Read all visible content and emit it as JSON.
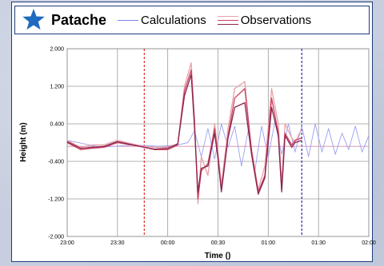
{
  "station": {
    "name": "Patache",
    "icon": "star-icon",
    "icon_color": "#1f6bbf"
  },
  "legend": [
    {
      "label": "Calculations",
      "color": "#7c80e6"
    },
    {
      "label": "Observations",
      "colors": [
        "#e8a0a8",
        "#cc4060",
        "#8a2550"
      ]
    }
  ],
  "chart_data": {
    "type": "line",
    "title": "",
    "xlabel": "Time ()",
    "ylabel": "Height (m)",
    "x_ticks": [
      "23:00",
      "23:30",
      "00:00",
      "00:30",
      "01:00",
      "01:30",
      "02:00"
    ],
    "y_ticks": [
      "2.000",
      "1.200",
      "0.400",
      "-0.400",
      "-1.200",
      "-2.000"
    ],
    "xlim_minutes": [
      0,
      180
    ],
    "ylim": [
      -2.0,
      2.0
    ],
    "grid": true,
    "vlines": [
      {
        "x_minutes": 46,
        "color": "#e03030"
      },
      {
        "x_minutes": 140,
        "color": "#2a2aa0"
      }
    ],
    "series": [
      {
        "color": "#9aa0f0",
        "points": [
          [
            0,
            0.05
          ],
          [
            20,
            -0.1
          ],
          [
            40,
            -0.05
          ],
          [
            55,
            -0.08
          ],
          [
            66,
            -0.05
          ],
          [
            72,
            0.0
          ],
          [
            76,
            0.25
          ],
          [
            80,
            -0.3
          ],
          [
            84,
            0.3
          ],
          [
            88,
            -0.35
          ],
          [
            92,
            0.4
          ],
          [
            96,
            -0.1
          ],
          [
            100,
            0.35
          ],
          [
            104,
            -0.5
          ],
          [
            108,
            0.25
          ],
          [
            112,
            -0.6
          ],
          [
            116,
            0.35
          ],
          [
            120,
            -0.3
          ],
          [
            124,
            0.45
          ],
          [
            128,
            -0.25
          ],
          [
            132,
            0.4
          ],
          [
            136,
            -0.2
          ],
          [
            140,
            0.35
          ],
          [
            144,
            -0.3
          ],
          [
            148,
            0.4
          ],
          [
            152,
            -0.2
          ],
          [
            156,
            0.3
          ],
          [
            160,
            -0.25
          ],
          [
            164,
            0.2
          ],
          [
            168,
            -0.15
          ],
          [
            172,
            0.35
          ],
          [
            176,
            -0.2
          ],
          [
            180,
            0.15
          ]
        ]
      },
      {
        "color": "#e8a0a8",
        "points": [
          [
            0,
            0.05
          ],
          [
            8,
            -0.1
          ],
          [
            15,
            -0.05
          ],
          [
            22,
            -0.05
          ],
          [
            30,
            0.05
          ],
          [
            38,
            -0.02
          ],
          [
            46,
            -0.08
          ],
          [
            52,
            -0.1
          ],
          [
            60,
            -0.1
          ],
          [
            66,
            -0.02
          ],
          [
            70,
            1.2
          ],
          [
            74,
            1.7
          ],
          [
            76,
            0.5
          ],
          [
            78,
            -1.3
          ],
          [
            80,
            -0.3
          ],
          [
            84,
            -0.7
          ],
          [
            88,
            0.4
          ],
          [
            90,
            -0.2
          ],
          [
            92,
            -0.9
          ],
          [
            96,
            0.3
          ],
          [
            100,
            1.15
          ],
          [
            106,
            1.3
          ],
          [
            110,
            -0.2
          ],
          [
            114,
            -1.0
          ],
          [
            118,
            -0.5
          ],
          [
            122,
            1.15
          ],
          [
            126,
            0.4
          ],
          [
            128,
            -0.9
          ],
          [
            130,
            0.4
          ],
          [
            134,
            0.1
          ],
          [
            136,
            0.0
          ],
          [
            140,
            0.3
          ]
        ]
      },
      {
        "color": "#cc4060",
        "points": [
          [
            0,
            0.0
          ],
          [
            8,
            -0.15
          ],
          [
            15,
            -0.12
          ],
          [
            22,
            -0.1
          ],
          [
            30,
            0.0
          ],
          [
            38,
            -0.05
          ],
          [
            46,
            -0.1
          ],
          [
            52,
            -0.15
          ],
          [
            60,
            -0.15
          ],
          [
            66,
            -0.05
          ],
          [
            70,
            1.1
          ],
          [
            74,
            1.55
          ],
          [
            76,
            0.4
          ],
          [
            78,
            -1.2
          ],
          [
            80,
            -0.6
          ],
          [
            84,
            -0.45
          ],
          [
            88,
            0.3
          ],
          [
            90,
            -0.3
          ],
          [
            92,
            -1.0
          ],
          [
            96,
            0.15
          ],
          [
            100,
            0.95
          ],
          [
            106,
            1.15
          ],
          [
            110,
            -0.15
          ],
          [
            114,
            -1.05
          ],
          [
            118,
            -0.7
          ],
          [
            122,
            0.95
          ],
          [
            126,
            0.2
          ],
          [
            128,
            -1.0
          ],
          [
            130,
            0.2
          ],
          [
            134,
            -0.05
          ],
          [
            136,
            0.05
          ],
          [
            140,
            0.1
          ]
        ]
      },
      {
        "color": "#8a2550",
        "points": [
          [
            0,
            0.02
          ],
          [
            8,
            -0.12
          ],
          [
            15,
            -0.1
          ],
          [
            22,
            -0.08
          ],
          [
            30,
            0.02
          ],
          [
            38,
            -0.04
          ],
          [
            46,
            -0.1
          ],
          [
            52,
            -0.14
          ],
          [
            60,
            -0.12
          ],
          [
            66,
            -0.03
          ],
          [
            70,
            1.0
          ],
          [
            74,
            1.45
          ],
          [
            76,
            0.3
          ],
          [
            78,
            -1.05
          ],
          [
            80,
            -0.55
          ],
          [
            84,
            -0.5
          ],
          [
            88,
            0.2
          ],
          [
            90,
            -0.35
          ],
          [
            92,
            -1.05
          ],
          [
            96,
            0.1
          ],
          [
            100,
            0.75
          ],
          [
            106,
            0.85
          ],
          [
            110,
            -0.25
          ],
          [
            114,
            -1.1
          ],
          [
            118,
            -0.75
          ],
          [
            122,
            0.75
          ],
          [
            126,
            0.15
          ],
          [
            128,
            -1.05
          ],
          [
            130,
            0.15
          ],
          [
            134,
            -0.1
          ],
          [
            136,
            0.0
          ],
          [
            140,
            0.05
          ]
        ]
      }
    ]
  }
}
